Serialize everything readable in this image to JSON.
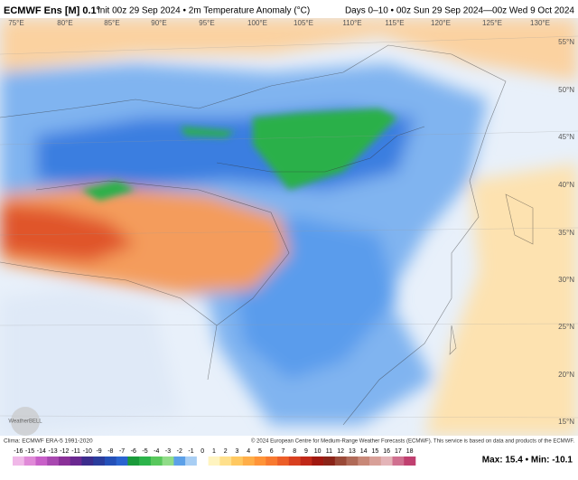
{
  "header": {
    "model": "ECMWF Ens [M] 0.1°",
    "info": "Init 00z 29 Sep 2024 • 2m Temperature Anomaly (°C)",
    "period": "Days 0–10 • 00z Sun 29 Sep 2024—00z Wed 9 Oct 2024"
  },
  "map": {
    "longitudes": [
      "75°E",
      "80°E",
      "85°E",
      "90°E",
      "95°E",
      "100°E",
      "105°E",
      "110°E",
      "115°E",
      "120°E",
      "125°E",
      "130°E"
    ],
    "latitudes": [
      "55°N",
      "50°N",
      "45°N",
      "40°N",
      "35°N",
      "30°N",
      "25°N",
      "20°N",
      "15°N"
    ],
    "logo": "WeatherBELL"
  },
  "footer": {
    "clima": "Clima: ECMWF ERA-5 1991-2020",
    "copyright": "© 2024 European Centre for Medium-Range Weather Forecasts (ECMWF). This service is based on data and products of the ECMWF.",
    "stats": "Max: 15.4 • Min: -10.1"
  },
  "colorbar": {
    "ticks": [
      -16,
      -15,
      -14,
      -13,
      -12,
      -11,
      -10,
      -9,
      -8,
      -7,
      -6,
      -5,
      -4,
      -3,
      -2,
      -1,
      0,
      1,
      2,
      3,
      4,
      5,
      6,
      7,
      8,
      9,
      10,
      11,
      12,
      13,
      14,
      15,
      16,
      17,
      18
    ],
    "colors": [
      "#f0b8e8",
      "#e08ad8",
      "#c860c8",
      "#a848b0",
      "#8a3098",
      "#6a2890",
      "#3c2c8c",
      "#2a3c9c",
      "#2450b8",
      "#2a64d0",
      "#1a9a3a",
      "#2cb44a",
      "#58c85c",
      "#90dc88",
      "#5ca0e8",
      "#a8cef4",
      "#ffffff",
      "#fff4c0",
      "#ffe08c",
      "#ffc860",
      "#ffae48",
      "#ff9438",
      "#f87a30",
      "#ec5e28",
      "#d84020",
      "#c02818",
      "#a01810",
      "#8a2418",
      "#9a4a38",
      "#b06a58",
      "#c88878",
      "#d8a098",
      "#e4b4b8",
      "#d07090",
      "#c04070"
    ]
  }
}
